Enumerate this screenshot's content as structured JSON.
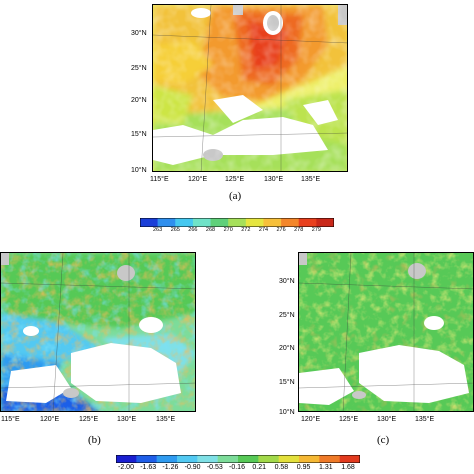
{
  "panels": {
    "a": {
      "label": "(a)",
      "lat_ticks": [
        "30°N",
        "25°N",
        "20°N",
        "15°N",
        "10°N"
      ],
      "lon_ticks": [
        "115°E",
        "120°E",
        "125°E",
        "130°E",
        "135°E"
      ]
    },
    "b": {
      "label": "(b)",
      "lon_ticks": [
        "115°E",
        "120°E",
        "125°E",
        "130°E",
        "135°E"
      ]
    },
    "c": {
      "label": "(c)",
      "lat_ticks": [
        "30°N",
        "25°N",
        "20°N",
        "15°N",
        "10°N"
      ],
      "lon_ticks": [
        "120°E",
        "125°E",
        "130°E",
        "135°E"
      ]
    }
  },
  "colorbar_top": {
    "labels": [
      "263",
      "265",
      "266",
      "268",
      "270",
      "272",
      "274",
      "276",
      "278",
      "279"
    ],
    "colors": [
      "#1b3fd8",
      "#2f8fee",
      "#45c8f0",
      "#6fe3c8",
      "#5fd07a",
      "#a6e05a",
      "#e6e640",
      "#f7c03a",
      "#f3862a",
      "#e8401e",
      "#c9281a"
    ]
  },
  "colorbar_bottom": {
    "labels": [
      "-2.00",
      "-1.63",
      "-1.26",
      "-0.90",
      "-0.53",
      "-0.16",
      "0.21",
      "0.58",
      "0.95",
      "1.31",
      "1.68"
    ],
    "colors": [
      "#1a1fd0",
      "#1f5ee8",
      "#2f9bf0",
      "#52c9f2",
      "#7fe0e6",
      "#7ddc9a",
      "#57c957",
      "#a2d94a",
      "#e3e03c",
      "#f5b834",
      "#ef7a28",
      "#e23a1e"
    ]
  }
}
